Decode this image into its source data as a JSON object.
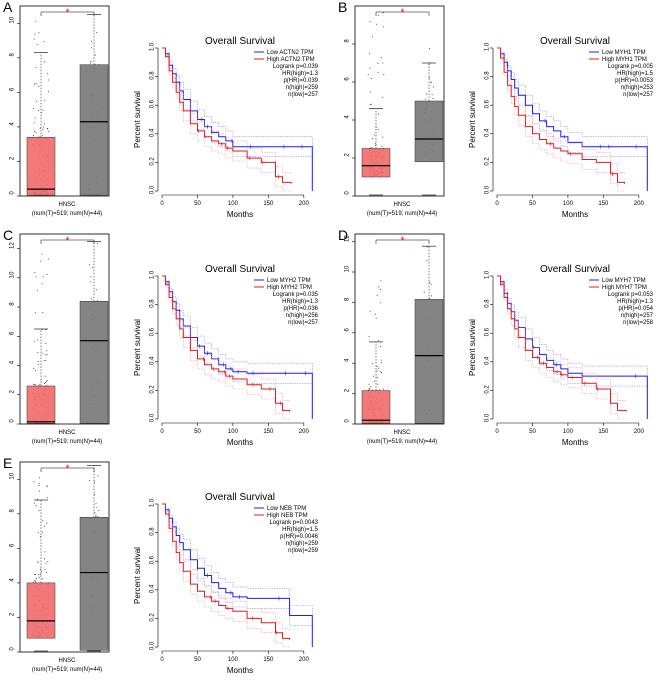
{
  "colors": {
    "tumor": "#f26d6d",
    "normal": "#7a7a7a",
    "low": "#1c1cff",
    "high": "#e41a1c",
    "ci_low": "#7f7fff",
    "ci_high": "#f58c8c"
  },
  "chart_data": [
    {
      "panel": "A",
      "type": "box+survival",
      "box": {
        "title": "",
        "ylim": [
          0,
          11
        ],
        "yticks": [
          0,
          2,
          4,
          6,
          8,
          10
        ],
        "groups": [
          {
            "name": "Tumor",
            "q1": 0.05,
            "median": 0.4,
            "q3": 3.4,
            "whisker_low": 0,
            "whisker_high": 8.3,
            "max": 10.6
          },
          {
            "name": "Normal",
            "q1": 0.05,
            "median": 4.3,
            "q3": 7.6,
            "whisker_low": 0,
            "whisker_high": 10.5,
            "max": 10.6
          }
        ],
        "xlabel": "HNSC",
        "sublabel": "(num(T)=519; num(N)=44)",
        "significance": "*"
      },
      "survival": {
        "title": "Overall Survival",
        "xlabel": "Months",
        "ylabel": "Percent survival",
        "xlim": [
          0,
          220
        ],
        "ylim": [
          0,
          1
        ],
        "xticks": [
          0,
          50,
          100,
          150,
          200
        ],
        "yticks": [
          0.0,
          0.2,
          0.4,
          0.6,
          0.8,
          1.0
        ],
        "legend": [
          "Low ACTN2 TPM",
          "High ACTN2 TPM"
        ],
        "stats": [
          "Logrank p=0.039",
          "HR(high)=1.3",
          "p(HR)=0.039",
          "n(high)=259",
          "n(low)=257"
        ],
        "series": [
          {
            "name": "Low ACTN2 TPM",
            "x": [
              0,
              5,
              10,
              15,
              20,
              25,
              30,
              40,
              50,
              60,
              70,
              80,
              90,
              100,
              120,
              150,
              180,
              212,
              212
            ],
            "y": [
              1,
              0.96,
              0.88,
              0.82,
              0.76,
              0.7,
              0.64,
              0.56,
              0.5,
              0.45,
              0.41,
              0.38,
              0.35,
              0.31,
              0.31,
              0.31,
              0.31,
              0.31,
              0.0
            ]
          },
          {
            "name": "High ACTN2 TPM",
            "x": [
              0,
              5,
              10,
              15,
              20,
              25,
              30,
              40,
              50,
              60,
              70,
              80,
              90,
              100,
              120,
              140,
              160,
              170,
              182
            ],
            "y": [
              1,
              0.94,
              0.84,
              0.76,
              0.69,
              0.62,
              0.56,
              0.47,
              0.42,
              0.38,
              0.35,
              0.33,
              0.3,
              0.28,
              0.23,
              0.2,
              0.1,
              0.06,
              0.05
            ]
          }
        ]
      }
    },
    {
      "panel": "B",
      "type": "box+survival",
      "box": {
        "ylim": [
          0,
          10
        ],
        "yticks": [
          0,
          2,
          4,
          6,
          8
        ],
        "groups": [
          {
            "name": "Tumor",
            "q1": 1.0,
            "median": 1.6,
            "q3": 2.5,
            "whisker_low": 0,
            "whisker_high": 4.6,
            "max": 10.0
          },
          {
            "name": "Normal",
            "q1": 1.8,
            "median": 3.0,
            "q3": 5.0,
            "whisker_low": 0,
            "whisker_high": 7.0,
            "max": 8.0
          }
        ],
        "xlabel": "HNSC",
        "sublabel": "(num(T)=519; num(N)=44)",
        "significance": "*"
      },
      "survival": {
        "title": "Overall Survival",
        "xlabel": "Months",
        "ylabel": "Percent survival",
        "xlim": [
          0,
          220
        ],
        "ylim": [
          0,
          1
        ],
        "xticks": [
          0,
          50,
          100,
          150,
          200
        ],
        "yticks": [
          0.0,
          0.2,
          0.4,
          0.6,
          0.8,
          1.0
        ],
        "legend": [
          "Low MYH1 TPM",
          "High MYH1 TPM"
        ],
        "stats": [
          "Logrank p=0.005",
          "HR(high)=1.5",
          "p(HR)=0.0053",
          "n(high)=253",
          "n(low)=257"
        ],
        "series": [
          {
            "name": "Low MYH1 TPM",
            "x": [
              0,
              5,
              10,
              15,
              20,
              25,
              30,
              40,
              50,
              60,
              70,
              80,
              90,
              100,
              120,
              150,
              180,
              212,
              212
            ],
            "y": [
              1,
              0.96,
              0.9,
              0.84,
              0.78,
              0.72,
              0.67,
              0.6,
              0.54,
              0.49,
              0.45,
              0.42,
              0.38,
              0.34,
              0.31,
              0.31,
              0.31,
              0.31,
              0.0
            ]
          },
          {
            "name": "High MYH1 TPM",
            "x": [
              0,
              5,
              10,
              15,
              20,
              25,
              30,
              40,
              50,
              60,
              70,
              80,
              90,
              100,
              120,
              140,
              160,
              170,
              180
            ],
            "y": [
              1,
              0.93,
              0.83,
              0.74,
              0.66,
              0.59,
              0.53,
              0.45,
              0.4,
              0.36,
              0.33,
              0.3,
              0.28,
              0.26,
              0.22,
              0.2,
              0.12,
              0.06,
              0.05
            ]
          }
        ]
      }
    },
    {
      "panel": "C",
      "type": "box+survival",
      "box": {
        "ylim": [
          0,
          13
        ],
        "yticks": [
          0,
          2,
          4,
          6,
          8,
          10,
          12
        ],
        "groups": [
          {
            "name": "Tumor",
            "q1": 0.05,
            "median": 0.15,
            "q3": 2.6,
            "whisker_low": 0,
            "whisker_high": 6.5,
            "max": 12.0
          },
          {
            "name": "Normal",
            "q1": 0.05,
            "median": 5.7,
            "q3": 8.4,
            "whisker_low": 0,
            "whisker_high": 12.5,
            "max": 12.6
          }
        ],
        "xlabel": "HNSC",
        "sublabel": "(num(T)=519; num(N)=44)",
        "significance": "*"
      },
      "survival": {
        "title": "Overall Survival",
        "xlabel": "Months",
        "ylabel": "Percent survival",
        "xlim": [
          0,
          220
        ],
        "ylim": [
          0,
          1
        ],
        "xticks": [
          0,
          50,
          100,
          150,
          200
        ],
        "yticks": [
          0.0,
          0.2,
          0.4,
          0.6,
          0.8,
          1.0
        ],
        "legend": [
          "Low MYH2 TPM",
          "High MYH2 TPM"
        ],
        "stats": [
          "Logrank p=0.035",
          "HR(high)=1.3",
          "p(HR)=0.036",
          "n(high)=256",
          "n(low)=257"
        ],
        "series": [
          {
            "name": "Low MYH2 TPM",
            "x": [
              0,
              5,
              10,
              15,
              20,
              25,
              30,
              40,
              50,
              60,
              70,
              80,
              90,
              100,
              120,
              150,
              180,
              212,
              212
            ],
            "y": [
              1,
              0.96,
              0.89,
              0.82,
              0.76,
              0.7,
              0.65,
              0.57,
              0.51,
              0.46,
              0.42,
              0.38,
              0.35,
              0.33,
              0.32,
              0.32,
              0.32,
              0.32,
              0.0
            ]
          },
          {
            "name": "High MYH2 TPM",
            "x": [
              0,
              5,
              10,
              15,
              20,
              25,
              30,
              40,
              50,
              60,
              70,
              80,
              90,
              100,
              120,
              140,
              160,
              170,
              180
            ],
            "y": [
              1,
              0.94,
              0.85,
              0.77,
              0.7,
              0.63,
              0.57,
              0.48,
              0.42,
              0.38,
              0.35,
              0.33,
              0.3,
              0.28,
              0.24,
              0.21,
              0.11,
              0.06,
              0.05
            ]
          }
        ]
      }
    },
    {
      "panel": "D",
      "type": "box+survival",
      "box": {
        "ylim": [
          0,
          12.5
        ],
        "yticks": [
          0,
          2,
          4,
          6,
          8,
          10,
          12
        ],
        "groups": [
          {
            "name": "Tumor",
            "q1": 0.05,
            "median": 0.25,
            "q3": 2.2,
            "whisker_low": 0,
            "whisker_high": 5.4,
            "max": 9.8
          },
          {
            "name": "Normal",
            "q1": 0.05,
            "median": 4.5,
            "q3": 8.2,
            "whisker_low": 0,
            "whisker_high": 11.7,
            "max": 11.7
          }
        ],
        "xlabel": "HNSC",
        "sublabel": "(num(T)=519; num(N)=44)",
        "significance": "*"
      },
      "survival": {
        "title": "Overall Survival",
        "xlabel": "Months",
        "ylabel": "Percent survival",
        "xlim": [
          0,
          220
        ],
        "ylim": [
          0,
          1
        ],
        "xticks": [
          0,
          50,
          100,
          150,
          200
        ],
        "yticks": [
          0.0,
          0.2,
          0.4,
          0.6,
          0.8,
          1.0
        ],
        "legend": [
          "Low MYH7 TPM",
          "High MYH7 TPM"
        ],
        "stats": [
          "Logrank p=0.053",
          "HR(high)=1.3",
          "p(HR)=0.054",
          "n(high)=257",
          "n(low)=258"
        ],
        "series": [
          {
            "name": "Low MYH7 TPM",
            "x": [
              0,
              5,
              10,
              15,
              20,
              25,
              30,
              40,
              50,
              60,
              70,
              80,
              90,
              100,
              120,
              150,
              180,
              212,
              212
            ],
            "y": [
              1,
              0.96,
              0.88,
              0.81,
              0.75,
              0.69,
              0.64,
              0.56,
              0.5,
              0.45,
              0.41,
              0.38,
              0.35,
              0.32,
              0.3,
              0.3,
              0.3,
              0.3,
              0.0
            ]
          },
          {
            "name": "High MYH7 TPM",
            "x": [
              0,
              5,
              10,
              15,
              20,
              25,
              30,
              40,
              50,
              60,
              70,
              80,
              90,
              100,
              120,
              140,
              160,
              170,
              182
            ],
            "y": [
              1,
              0.94,
              0.85,
              0.77,
              0.7,
              0.63,
              0.57,
              0.48,
              0.43,
              0.39,
              0.36,
              0.33,
              0.31,
              0.29,
              0.25,
              0.21,
              0.11,
              0.06,
              0.05
            ]
          }
        ]
      }
    },
    {
      "panel": "E",
      "type": "box+survival",
      "box": {
        "ylim": [
          0,
          11
        ],
        "yticks": [
          0,
          2,
          4,
          6,
          8,
          10
        ],
        "groups": [
          {
            "name": "Tumor",
            "q1": 0.8,
            "median": 1.8,
            "q3": 4.0,
            "whisker_low": 0,
            "whisker_high": 8.8,
            "max": 10.2
          },
          {
            "name": "Normal",
            "q1": 0.1,
            "median": 4.6,
            "q3": 7.8,
            "whisker_low": 0,
            "whisker_high": 10.8,
            "max": 10.8
          }
        ],
        "xlabel": "HNSC",
        "sublabel": "(num(T)=519; num(N)=44)",
        "significance": "*"
      },
      "survival": {
        "title": "Overall Survival",
        "xlabel": "Months",
        "ylabel": "Percent survival",
        "xlim": [
          0,
          220
        ],
        "ylim": [
          0,
          1
        ],
        "xticks": [
          0,
          50,
          100,
          150,
          200
        ],
        "yticks": [
          0.0,
          0.2,
          0.4,
          0.6,
          0.8,
          1.0
        ],
        "legend": [
          "Low NEB TPM",
          "High NEB TPM"
        ],
        "stats": [
          "Logrank p=0.0043",
          "HR(high)=1.5",
          "p(HR)=0.0046",
          "n(high)=259",
          "n(low)=259"
        ],
        "series": [
          {
            "name": "Low NEB TPM",
            "x": [
              0,
              5,
              10,
              15,
              20,
              25,
              30,
              40,
              50,
              60,
              70,
              80,
              90,
              100,
              120,
              150,
              180,
              212,
              212
            ],
            "y": [
              1,
              0.96,
              0.9,
              0.84,
              0.78,
              0.73,
              0.68,
              0.61,
              0.55,
              0.5,
              0.45,
              0.41,
              0.38,
              0.35,
              0.34,
              0.34,
              0.22,
              0.22,
              0.0
            ]
          },
          {
            "name": "High NEB TPM",
            "x": [
              0,
              5,
              10,
              15,
              20,
              25,
              30,
              40,
              50,
              60,
              70,
              80,
              90,
              100,
              120,
              140,
              160,
              170,
              180
            ],
            "y": [
              1,
              0.93,
              0.83,
              0.74,
              0.66,
              0.59,
              0.53,
              0.44,
              0.39,
              0.35,
              0.32,
              0.29,
              0.27,
              0.25,
              0.2,
              0.17,
              0.1,
              0.06,
              0.05
            ]
          }
        ]
      }
    }
  ]
}
